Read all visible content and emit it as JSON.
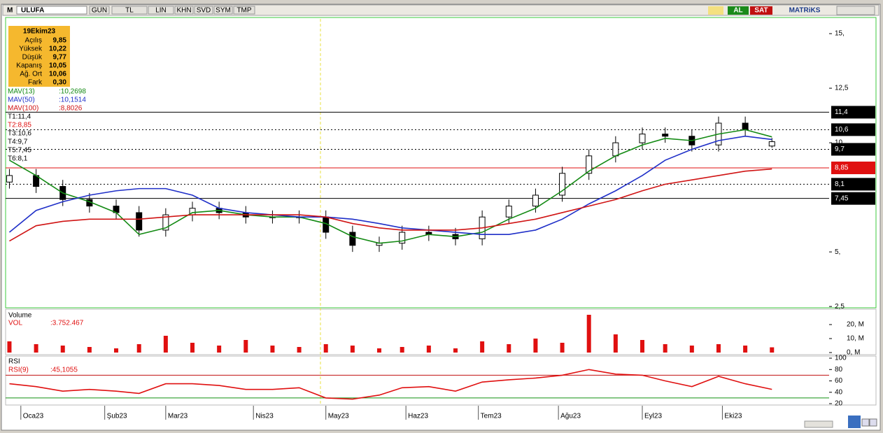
{
  "toolbar": {
    "logo": "M",
    "symbol": "ULUFA",
    "buttons": [
      "GUN",
      "TL",
      "LIN",
      "KHN",
      "SVD",
      "SYM",
      "TMP"
    ],
    "buy": "AL",
    "sell": "SAT",
    "brand": "MATRiKS"
  },
  "info_box": {
    "date": "19Ekim23",
    "rows": [
      [
        "Açılış",
        "9,85"
      ],
      [
        "Yüksek",
        "10,22"
      ],
      [
        "Düşük",
        "9,77"
      ],
      [
        "Kapanış",
        "10,05"
      ],
      [
        "Ağ. Ort",
        "10,06"
      ],
      [
        "Fark",
        "0,30"
      ]
    ]
  },
  "chart_data": [
    {
      "type": "candlestick",
      "x": [
        0,
        7,
        14,
        21,
        28,
        34,
        41,
        48,
        55,
        62,
        69,
        76,
        83,
        90,
        97,
        103,
        110,
        117,
        124,
        131,
        138,
        145,
        152,
        159,
        166,
        172,
        179,
        186,
        193,
        200
      ],
      "open": [
        8.2,
        8.5,
        8.0,
        7.4,
        7.1,
        6.8,
        6.0,
        6.7,
        7.0,
        6.8,
        6.6,
        6.6,
        6.6,
        5.9,
        5.3,
        5.4,
        5.9,
        5.8,
        5.6,
        6.6,
        7.1,
        7.6,
        8.6,
        9.4,
        10.0,
        10.4,
        10.3,
        9.9,
        10.9,
        9.85
      ],
      "high": [
        8.8,
        8.8,
        8.3,
        7.7,
        7.4,
        7.1,
        7.0,
        7.3,
        7.3,
        7.1,
        6.9,
        6.9,
        6.9,
        6.2,
        5.7,
        6.2,
        6.2,
        6.1,
        6.9,
        7.4,
        7.9,
        8.9,
        9.7,
        10.3,
        10.7,
        10.7,
        10.6,
        11.2,
        11.2,
        10.22
      ],
      "low": [
        7.9,
        7.7,
        7.1,
        6.8,
        6.5,
        5.7,
        5.7,
        6.4,
        6.5,
        6.3,
        6.3,
        6.3,
        5.6,
        5.0,
        5.0,
        5.1,
        5.5,
        5.3,
        5.3,
        6.3,
        6.8,
        7.3,
        8.3,
        9.1,
        9.7,
        10.0,
        9.6,
        9.6,
        10.3,
        9.77
      ],
      "close": [
        8.5,
        8.0,
        7.4,
        7.1,
        6.8,
        6.0,
        6.7,
        7.0,
        6.8,
        6.6,
        6.6,
        6.6,
        5.9,
        5.3,
        5.4,
        5.9,
        5.8,
        5.6,
        6.6,
        7.1,
        7.6,
        8.6,
        9.4,
        10.0,
        10.4,
        10.3,
        9.9,
        10.9,
        10.6,
        10.05
      ],
      "series": [
        {
          "name": "MAV(13)",
          "legend_value": ":10,2698",
          "color": "#138a13",
          "values": [
            9.2,
            8.5,
            7.7,
            7.3,
            6.8,
            5.8,
            6.1,
            6.8,
            6.9,
            6.7,
            6.6,
            6.6,
            6.3,
            5.7,
            5.4,
            5.5,
            5.8,
            5.7,
            5.9,
            6.5,
            7.0,
            7.8,
            8.7,
            9.4,
            9.9,
            10.2,
            10.1,
            10.4,
            10.6,
            10.27
          ]
        },
        {
          "name": "MAV(50)",
          "legend_value": ":10,1514",
          "color": "#1f2fc8",
          "values": [
            5.9,
            6.9,
            7.3,
            7.6,
            7.8,
            7.9,
            7.9,
            7.6,
            7.0,
            6.8,
            6.7,
            6.6,
            6.6,
            6.5,
            6.3,
            6.1,
            6.0,
            5.9,
            5.8,
            5.8,
            6.0,
            6.5,
            7.2,
            7.8,
            8.5,
            9.2,
            9.7,
            10.1,
            10.3,
            10.15
          ]
        },
        {
          "name": "MAV(100)",
          "legend_value": ":8,8026",
          "color": "#d01414",
          "values": [
            5.5,
            6.2,
            6.4,
            6.5,
            6.5,
            6.5,
            6.6,
            6.7,
            6.7,
            6.7,
            6.7,
            6.7,
            6.6,
            6.3,
            6.1,
            6.0,
            6.0,
            6.0,
            6.1,
            6.3,
            6.5,
            6.8,
            7.1,
            7.4,
            7.8,
            8.1,
            8.3,
            8.5,
            8.7,
            8.8
          ]
        }
      ],
      "levels": [
        {
          "label": "T1:11,4",
          "tag": "11,4",
          "value": 11.4,
          "color": "#000000",
          "style": "solid"
        },
        {
          "label": "T2:8,85",
          "tag": "8,85",
          "value": 8.85,
          "color": "#e01010",
          "style": "solid"
        },
        {
          "label": "T3:10,6",
          "tag": "10,6",
          "value": 10.6,
          "color": "#000000",
          "style": "dotted"
        },
        {
          "label": "T4:9,7",
          "tag": "9,7",
          "value": 9.7,
          "color": "#000000",
          "style": "dotted"
        },
        {
          "label": "T5:7,45",
          "tag": "7,45",
          "value": 7.45,
          "color": "#000000",
          "style": "solid"
        },
        {
          "label": "T6:8,1",
          "tag": "8,1",
          "value": 8.1,
          "color": "#000000",
          "style": "dotted"
        }
      ],
      "xlim": [
        -1,
        215
      ],
      "ylim": [
        2.44,
        15.74
      ],
      "yticks": [
        {
          "value": 2.5,
          "label": "2,5"
        },
        {
          "value": 5,
          "label": "5,"
        },
        {
          "value": 10,
          "label": "10,"
        },
        {
          "value": 12.5,
          "label": "12,5"
        },
        {
          "value": 15,
          "label": "15,"
        }
      ],
      "xticks": [
        {
          "value": 3,
          "label": "Oca23"
        },
        {
          "value": 25,
          "label": "Şub23"
        },
        {
          "value": 41,
          "label": "Mar23"
        },
        {
          "value": 64,
          "label": "Nis23"
        },
        {
          "value": 83,
          "label": "May23"
        },
        {
          "value": 104,
          "label": "Haz23"
        },
        {
          "value": 123,
          "label": "Tem23"
        },
        {
          "value": 144,
          "label": "Ağu23"
        },
        {
          "value": 166,
          "label": "Eyl23"
        },
        {
          "value": 187,
          "label": "Eki23"
        }
      ]
    },
    {
      "type": "bar",
      "title": "Volume",
      "series": [
        {
          "name": "VOL",
          "legend_value": ":3.752.467",
          "color": "#e01010",
          "values": [
            8,
            6,
            5,
            4,
            3,
            6,
            12,
            7,
            5,
            9,
            5,
            4,
            6,
            5,
            3,
            4,
            5,
            3,
            8,
            6,
            10,
            7,
            27,
            13,
            9,
            6,
            5,
            6,
            5,
            3.75
          ]
        }
      ],
      "ylim": [
        -1,
        30.5
      ],
      "yticks": [
        {
          "value": 0,
          "label": "0, M"
        },
        {
          "value": 10,
          "label": "10, M"
        },
        {
          "value": 20,
          "label": "20, M"
        }
      ]
    },
    {
      "type": "line",
      "title": "RSI",
      "series": [
        {
          "name": "RSI(9)",
          "legend_value": ":45,1055",
          "color": "#e01010",
          "values": [
            55,
            50,
            42,
            45,
            42,
            38,
            55,
            55,
            52,
            45,
            45,
            48,
            30,
            28,
            35,
            48,
            50,
            42,
            58,
            62,
            65,
            70,
            80,
            72,
            70,
            60,
            50,
            68,
            55,
            45.1
          ]
        }
      ],
      "levels": [
        {
          "value": 70,
          "color": "#c01010"
        },
        {
          "value": 30,
          "color": "#109010"
        }
      ],
      "ylim": [
        18.8,
        102.5
      ],
      "yticks": [
        20,
        40,
        60,
        80,
        100
      ]
    }
  ]
}
